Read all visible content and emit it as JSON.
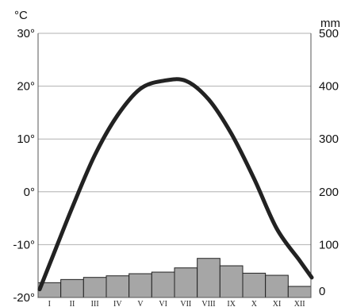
{
  "chart_data": {
    "type": "climate-diagram",
    "left_axis": {
      "unit": "°C",
      "range": [
        -20,
        30
      ],
      "ticks": [
        {
          "value": 30,
          "label": "30°"
        },
        {
          "value": 20,
          "label": "20°"
        },
        {
          "value": 10,
          "label": "10°"
        },
        {
          "value": 0,
          "label": "0°"
        },
        {
          "value": -10,
          "label": "-10°"
        },
        {
          "value": -20,
          "label": "-20°"
        }
      ]
    },
    "right_axis": {
      "unit": "mm",
      "range": [
        0,
        500
      ],
      "ticks": [
        {
          "value": 500,
          "label": "500"
        },
        {
          "value": 400,
          "label": "400"
        },
        {
          "value": 300,
          "label": "300"
        },
        {
          "value": 200,
          "label": "200"
        },
        {
          "value": 100,
          "label": "100"
        },
        {
          "value": 0,
          "label": "0"
        }
      ]
    },
    "categories": [
      "I",
      "II",
      "III",
      "IV",
      "V",
      "VI",
      "VII",
      "VIII",
      "IX",
      "X",
      "XI",
      "XII"
    ],
    "precipitation": [
      28,
      34,
      38,
      41,
      45,
      48,
      56,
      74,
      60,
      46,
      42,
      21
    ],
    "temperature": [
      -13.8,
      -3,
      7,
      14.5,
      19.5,
      21,
      21,
      17.5,
      11,
      2.5,
      -7,
      -13
    ],
    "grid": true,
    "colors": {
      "bar_fill": "#a6a6a6",
      "bar_stroke": "#222222",
      "line": "#222222",
      "grid": "#b0b0b0"
    }
  }
}
